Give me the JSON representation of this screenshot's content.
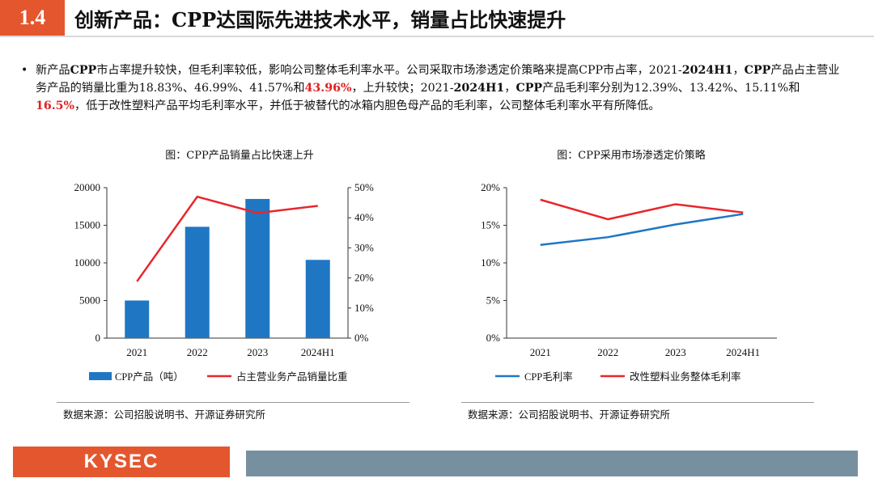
{
  "header": {
    "section_number": "1.4",
    "title": "创新产品：CPP达国际先进技术水平，销量占比快速提升"
  },
  "bullet": {
    "p1": "新产品",
    "p2": "CPP",
    "p3": "市占率提升较快，但毛利率较低，影响公司整体毛利率水平。公司采取市场渗透定价策略来提高CPP市占率，2021-",
    "p4": "2024H1",
    "p5": "，",
    "p6": "CPP",
    "p7": "产品占主营业务产品的销量比重为18.83%、46.99%、41.57%和",
    "p8": "43.96%",
    "p9": "，上升较快；2021-",
    "p10": "2024H1",
    "p11": "，",
    "p12": "CPP",
    "p13": "产品毛利率分别为12.39%、13.42%、15.11%和",
    "p14": "16.5%",
    "p15": "，低于改性塑料产品平均毛利率水平，并低于被替代的冰箱内胆色母产品的毛利率，公司整体毛利率水平有所降低。"
  },
  "left_chart": {
    "caption": "图：CPP产品销量占比快速上升",
    "source": "数据来源：公司招股说明书、开源证券研究所"
  },
  "right_chart": {
    "caption": "图：CPP采用市场渗透定价策略",
    "source": "数据来源：公司招股说明书、开源证券研究所"
  },
  "footer": {
    "logo": "KYSEC"
  },
  "colors": {
    "accent": "#e4572e",
    "bar": "#1f77c4",
    "red_line": "#e8262b",
    "blue_line": "#1f77c4",
    "footer_blue": "#76909f"
  },
  "chart_data": [
    {
      "type": "bar",
      "categories": [
        "2021",
        "2022",
        "2023",
        "2024H1"
      ],
      "series": [
        {
          "name": "CPP产品（吨）",
          "type": "bar",
          "axis": "left",
          "values": [
            5000,
            14800,
            18500,
            10400
          ]
        },
        {
          "name": "占主营业务产品销量比重",
          "type": "line",
          "axis": "right",
          "values": [
            18.83,
            46.99,
            41.57,
            43.96
          ]
        }
      ],
      "y_left": {
        "min": 0,
        "max": 20000,
        "ticks": [
          "0",
          "5000",
          "10000",
          "15000",
          "20000"
        ]
      },
      "y_right": {
        "min": 0,
        "max": 50,
        "ticks": [
          "0%",
          "10%",
          "20%",
          "30%",
          "40%",
          "50%"
        ]
      },
      "legend_position": "bottom",
      "grid": false
    },
    {
      "type": "line",
      "categories": [
        "2021",
        "2022",
        "2023",
        "2024H1"
      ],
      "series": [
        {
          "name": "CPP毛利率",
          "values": [
            12.39,
            13.42,
            15.11,
            16.5
          ]
        },
        {
          "name": "改性塑料业务整体毛利率",
          "values": [
            18.4,
            15.8,
            17.8,
            16.7
          ]
        }
      ],
      "y": {
        "min": 0,
        "max": 20,
        "ticks": [
          "0%",
          "5%",
          "10%",
          "15%",
          "20%"
        ]
      },
      "legend_position": "bottom",
      "grid": false
    }
  ]
}
